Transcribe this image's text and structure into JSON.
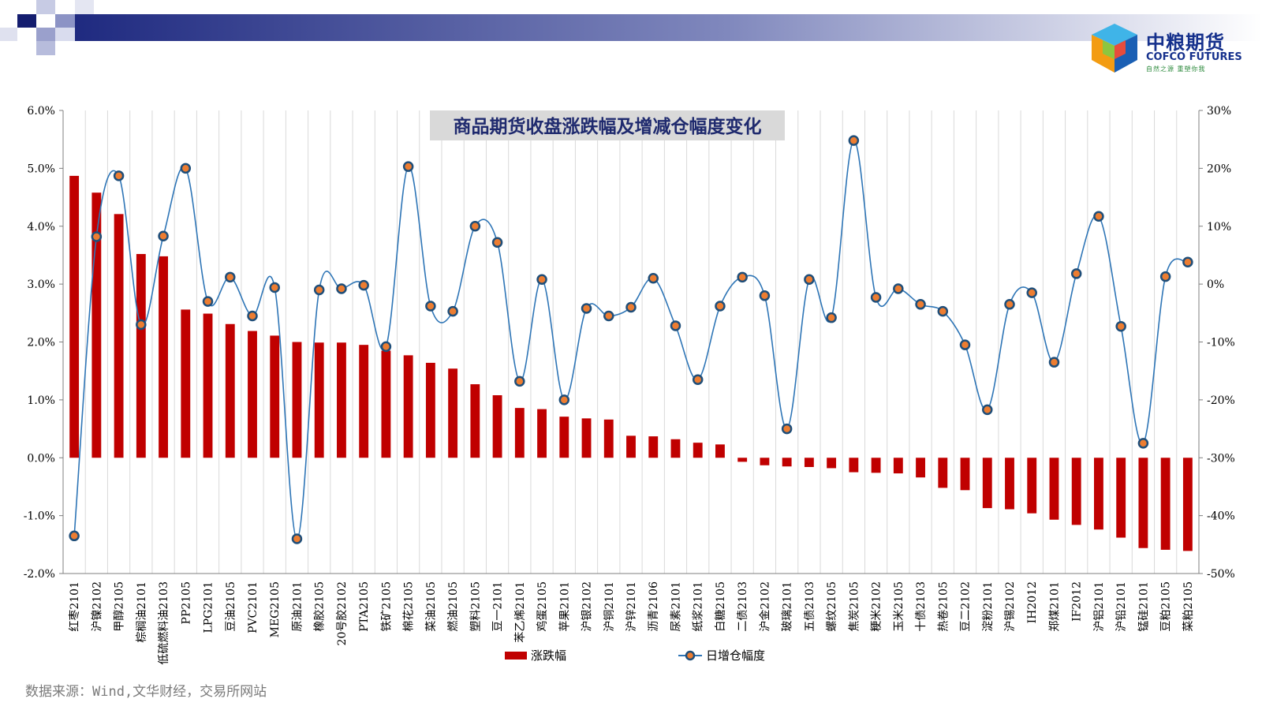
{
  "brand": {
    "name_cn": "中粮期货",
    "name_en": "COFCO FUTURES",
    "slogan": "自然之源 重塑你我"
  },
  "source_note": "数据来源：Wind,文华财经，交易所网站",
  "colors": {
    "bar": "#c00000",
    "line": "#2e75b6",
    "marker_fill": "#ed7d31",
    "marker_edge": "#1f4e79"
  },
  "chart_data": {
    "type": "bar",
    "title": "商品期货收盘涨跌幅及增减仓幅度变化",
    "categories": [
      "红枣2101",
      "沪镍2102",
      "甲醇2105",
      "棕榈油2101",
      "低硫燃料油2103",
      "PP2105",
      "LPG2101",
      "豆油2105",
      "PVC2101",
      "MEG2105",
      "原油2101",
      "橡胶2105",
      "20号胶2102",
      "PTA2105",
      "铁矿2105",
      "棉花2105",
      "菜油2105",
      "燃油2105",
      "塑料2105",
      "豆一2101",
      "苯乙烯2101",
      "鸡蛋2105",
      "苹果2101",
      "沪银2102",
      "沪铜2101",
      "沪锌2101",
      "沥青2106",
      "尿素2101",
      "纸浆2101",
      "白糖2105",
      "二债2103",
      "沪金2102",
      "玻璃2101",
      "五债2103",
      "螺纹2105",
      "焦炭2105",
      "粳米2102",
      "玉米2105",
      "十债2103",
      "热卷2105",
      "豆二2102",
      "淀粉2101",
      "沪锡2102",
      "IH2012",
      "郑煤2101",
      "IF2012",
      "沪铝2101",
      "沪铅2101",
      "锰硅2101",
      "豆粕2105",
      "菜粕2105"
    ],
    "series": [
      {
        "name": "涨跌幅",
        "type": "bar",
        "axis": "left",
        "values": [
          4.87,
          4.58,
          4.21,
          3.52,
          3.48,
          2.56,
          2.49,
          2.31,
          2.19,
          2.11,
          2.0,
          1.99,
          1.99,
          1.95,
          1.85,
          1.77,
          1.64,
          1.54,
          1.27,
          1.08,
          0.86,
          0.84,
          0.71,
          0.68,
          0.66,
          0.38,
          0.37,
          0.32,
          0.26,
          0.23,
          -0.07,
          -0.13,
          -0.15,
          -0.16,
          -0.18,
          -0.25,
          -0.26,
          -0.27,
          -0.34,
          -0.52,
          -0.56,
          -0.87,
          -0.89,
          -0.96,
          -1.07,
          -1.16,
          -1.24,
          -1.38,
          -1.56,
          -1.59,
          -1.61
        ]
      },
      {
        "name": "日增仓幅度",
        "type": "line",
        "axis": "right",
        "values": [
          -43.5,
          8.2,
          18.7,
          -7.0,
          8.3,
          20.0,
          -3.0,
          1.2,
          -5.5,
          -0.6,
          -44.0,
          -1.0,
          -0.8,
          -0.2,
          -10.8,
          20.3,
          -3.8,
          -4.7,
          10.0,
          7.2,
          -16.8,
          0.8,
          -20.0,
          -4.2,
          -5.5,
          -4.0,
          1.0,
          -7.2,
          -16.5,
          -3.8,
          1.2,
          -2.0,
          -25.0,
          0.8,
          -5.8,
          24.8,
          -2.3,
          -0.8,
          -3.5,
          -4.7,
          -10.5,
          -21.7,
          -3.5,
          -1.5,
          -13.5,
          1.8,
          11.7,
          -7.3,
          -27.5,
          1.3,
          3.8
        ]
      }
    ],
    "ylim_left": [
      -2.0,
      6.0
    ],
    "yticks_left": [
      "6.0%",
      "5.0%",
      "4.0%",
      "3.0%",
      "2.0%",
      "1.0%",
      "0.0%",
      "-1.0%",
      "-2.0%"
    ],
    "ylim_right": [
      -50,
      30
    ],
    "yticks_right": [
      "30%",
      "20%",
      "10%",
      "0%",
      "-10%",
      "-20%",
      "-30%",
      "-40%",
      "-50%"
    ],
    "grid": "vertical",
    "legend_position": "bottom"
  }
}
